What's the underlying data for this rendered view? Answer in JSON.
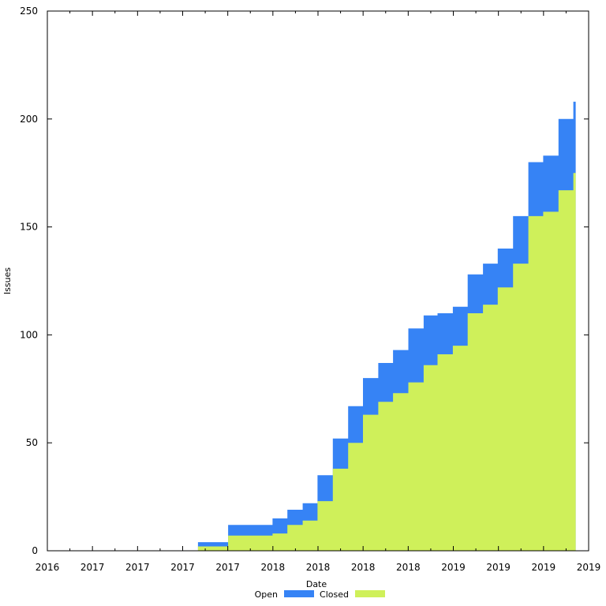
{
  "chart_data": {
    "type": "area",
    "xlabel": "Date",
    "ylabel": "Issues",
    "ylim": [
      0,
      250
    ],
    "grid": false,
    "legend_placement": "bottom-center",
    "x_tick_labels": [
      "2016",
      "2017",
      "2017",
      "2017",
      "2017",
      "2018",
      "2018",
      "2018",
      "2018",
      "2019",
      "2019",
      "2019",
      "2019"
    ],
    "y_tick_labels": [
      "0",
      "50",
      "100",
      "150",
      "200",
      "250"
    ],
    "stack_order": [
      "Closed",
      "Open"
    ],
    "series": [
      {
        "name": "Open",
        "color": "#3683f5"
      },
      {
        "name": "Closed",
        "color": "#cff05a"
      }
    ],
    "x": [
      "2016-10",
      "2016-11",
      "2016-12",
      "2017-01",
      "2017-02",
      "2017-03",
      "2017-04",
      "2017-05",
      "2017-06",
      "2017-07",
      "2017-08",
      "2017-09",
      "2017-10",
      "2017-11",
      "2017-12",
      "2018-01",
      "2018-02",
      "2018-03",
      "2018-04",
      "2018-05",
      "2018-06",
      "2018-07",
      "2018-08",
      "2018-09",
      "2018-10",
      "2018-11",
      "2018-12"
    ],
    "closed": [
      0,
      2,
      2,
      7,
      7,
      7,
      8,
      12,
      14,
      23,
      38,
      50,
      63,
      69,
      73,
      78,
      86,
      91,
      95,
      110,
      114,
      122,
      133,
      155,
      157,
      167,
      175
    ],
    "total": [
      0,
      4,
      4,
      12,
      12,
      12,
      15,
      19,
      22,
      35,
      52,
      67,
      80,
      87,
      93,
      103,
      109,
      110,
      113,
      128,
      133,
      140,
      155,
      180,
      183,
      200,
      208
    ]
  }
}
